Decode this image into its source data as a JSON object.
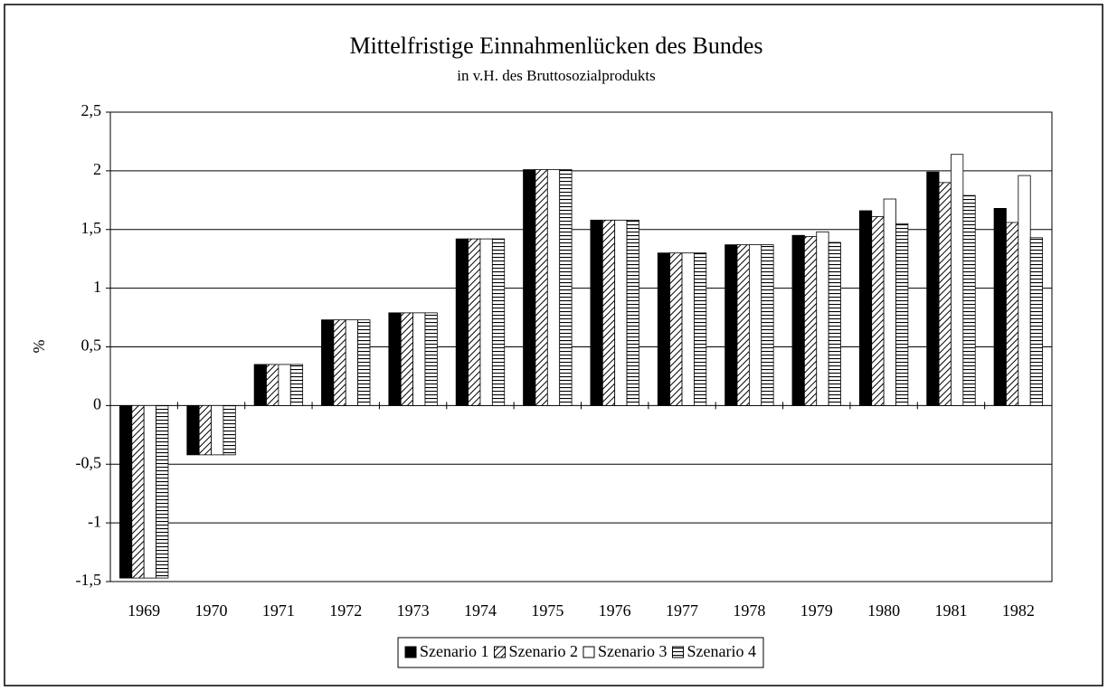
{
  "chart_data": {
    "type": "bar",
    "title": "Mittelfristige Einnahmenlücken des Bundes",
    "subtitle": "in v.H. des Bruttosozialprodukts",
    "y_label": "%",
    "categories": [
      "1969",
      "1970",
      "1971",
      "1972",
      "1973",
      "1974",
      "1975",
      "1976",
      "1977",
      "1978",
      "1979",
      "1980",
      "1981",
      "1982"
    ],
    "series": [
      {
        "name": "Szenario 1",
        "color": "#000000",
        "pattern": "solid",
        "values": [
          -1.47,
          -0.42,
          0.35,
          0.73,
          0.79,
          1.42,
          2.01,
          1.58,
          1.3,
          1.37,
          1.45,
          1.66,
          1.99,
          1.68
        ]
      },
      {
        "name": "Szenario 2",
        "color": "#000000",
        "pattern": "diagonal",
        "values": [
          -1.47,
          -0.42,
          0.35,
          0.73,
          0.79,
          1.42,
          2.01,
          1.58,
          1.3,
          1.37,
          1.44,
          1.61,
          1.9,
          1.56
        ]
      },
      {
        "name": "Szenario 3",
        "color": "#ffffff",
        "pattern": "solid",
        "values": [
          -1.47,
          -0.42,
          0.35,
          0.73,
          0.79,
          1.42,
          2.01,
          1.58,
          1.3,
          1.37,
          1.48,
          1.76,
          2.14,
          1.96
        ]
      },
      {
        "name": "Szenario 4",
        "color": "#000000",
        "pattern": "horizontal",
        "values": [
          -1.47,
          -0.42,
          0.35,
          0.73,
          0.79,
          1.42,
          2.01,
          1.58,
          1.3,
          1.37,
          1.39,
          1.55,
          1.79,
          1.43
        ]
      }
    ],
    "ylim": [
      -1.5,
      2.5
    ],
    "yticks": [
      {
        "value": -1.5,
        "label": "-1,5"
      },
      -1,
      {
        "value": -0.5,
        "label": "-0,5"
      },
      0,
      {
        "value": 0.5,
        "label": "0,5"
      },
      1,
      {
        "value": 1.5,
        "label": "1,5"
      },
      2,
      {
        "value": 2.5,
        "label": "2,5"
      }
    ],
    "grid": true,
    "legend": "bottom"
  }
}
